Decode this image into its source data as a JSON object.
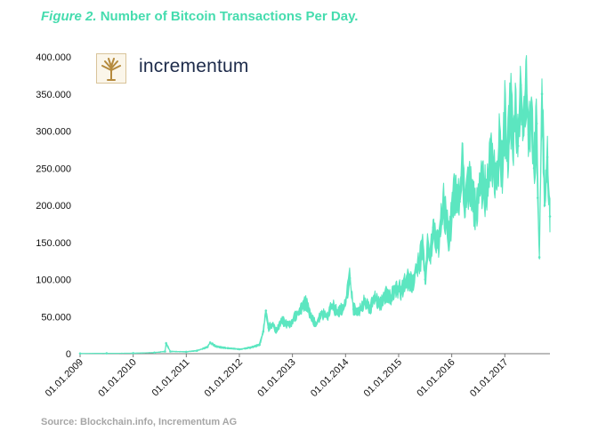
{
  "header": {
    "figure_label": "Figure 2.",
    "title_text": "Number of Bitcoin Transactions Per Day."
  },
  "logo": {
    "name": "incrementum",
    "icon": "tree-icon"
  },
  "source": "Source: Blockchain.info, Incrementum AG",
  "colors": {
    "title": "#45dcae",
    "series": "#5ce6c0",
    "logo_gold": "#b58a3d",
    "logo_text": "#1d2b4a",
    "source": "#a6a6a6"
  },
  "chart_data": {
    "type": "area",
    "title": "Number of Bitcoin Transactions Per Day.",
    "xlabel": "",
    "ylabel": "",
    "y_tick_labels": [
      "0",
      "50.000",
      "100.000",
      "150.000",
      "200.000",
      "250.000",
      "300.000",
      "350.000",
      "400.000"
    ],
    "x_tick_labels": [
      "01.01.2009",
      "01.01.2010",
      "01.01.2011",
      "01.01.2012",
      "01.01.2013",
      "01.01.2014",
      "01.01.2015",
      "01.01.2016",
      "01.01.2017"
    ],
    "ylim": [
      0,
      400000
    ],
    "xlim": [
      2009.0,
      2017.85
    ],
    "grid": false,
    "legend": "none",
    "series": [
      {
        "name": "",
        "x": [
          2009.0,
          2009.5,
          2010.0,
          2010.4,
          2010.6,
          2010.62,
          2010.7,
          2011.0,
          2011.2,
          2011.4,
          2011.45,
          2011.55,
          2011.7,
          2012.0,
          2012.2,
          2012.38,
          2012.45,
          2012.5,
          2012.55,
          2012.62,
          2012.7,
          2012.8,
          2012.95,
          2013.05,
          2013.15,
          2013.25,
          2013.32,
          2013.38,
          2013.45,
          2013.55,
          2013.65,
          2013.75,
          2013.85,
          2013.93,
          2014.0,
          2014.08,
          2014.15,
          2014.25,
          2014.35,
          2014.45,
          2014.55,
          2014.65,
          2014.75,
          2014.85,
          2014.95,
          2015.05,
          2015.15,
          2015.25,
          2015.35,
          2015.45,
          2015.5,
          2015.55,
          2015.6,
          2015.65,
          2015.75,
          2015.85,
          2015.95,
          2016.05,
          2016.15,
          2016.2,
          2016.25,
          2016.35,
          2016.45,
          2016.55,
          2016.65,
          2016.75,
          2016.85,
          2016.9,
          2016.95,
          2017.0,
          2017.05,
          2017.1,
          2017.15,
          2017.2,
          2017.25,
          2017.3,
          2017.35,
          2017.4,
          2017.45,
          2017.5,
          2017.55,
          2017.6,
          2017.62,
          2017.65,
          2017.7,
          2017.75,
          2017.8,
          2017.85
        ],
        "y": [
          300,
          500,
          700,
          1500,
          3000,
          14000,
          3000,
          2500,
          4000,
          9000,
          15000,
          10000,
          8000,
          6000,
          8000,
          12000,
          30000,
          58000,
          35000,
          40000,
          30000,
          45000,
          38000,
          50000,
          60000,
          70000,
          55000,
          45000,
          40000,
          55000,
          50000,
          65000,
          55000,
          60000,
          70000,
          102000,
          60000,
          55000,
          70000,
          60000,
          75000,
          65000,
          80000,
          75000,
          90000,
          85000,
          100000,
          95000,
          115000,
          140000,
          100000,
          145000,
          130000,
          170000,
          150000,
          200000,
          160000,
          215000,
          205000,
          255000,
          210000,
          230000,
          190000,
          235000,
          215000,
          270000,
          230000,
          285000,
          250000,
          320000,
          260000,
          345000,
          290000,
          330000,
          280000,
          362000,
          300000,
          370000,
          295000,
          330000,
          250000,
          310000,
          210000,
          130000,
          350000,
          200000,
          265000,
          185000
        ]
      }
    ]
  }
}
